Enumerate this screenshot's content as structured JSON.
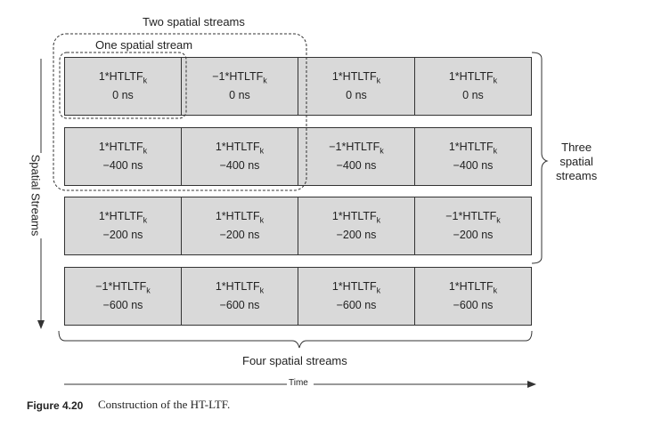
{
  "labels": {
    "two_streams": "Two spatial streams",
    "one_stream": "One spatial stream",
    "three_streams": [
      "Three",
      "spatial",
      "streams"
    ],
    "four_streams": "Four spatial streams",
    "spatial_axis": "Spatial Streams",
    "time_axis": "Time"
  },
  "rows": [
    {
      "cells": [
        {
          "sym": "1*HTLTF",
          "sub": "k",
          "shift": "0 ns"
        },
        {
          "sym": "−1*HTLTF",
          "sub": "k",
          "shift": "0 ns"
        },
        {
          "sym": "1*HTLTF",
          "sub": "k",
          "shift": "0 ns"
        },
        {
          "sym": "1*HTLTF",
          "sub": "k",
          "shift": "0 ns"
        }
      ]
    },
    {
      "cells": [
        {
          "sym": "1*HTLTF",
          "sub": "k",
          "shift": "−400 ns"
        },
        {
          "sym": "1*HTLTF",
          "sub": "k",
          "shift": "−400 ns"
        },
        {
          "sym": "−1*HTLTF",
          "sub": "k",
          "shift": "−400 ns"
        },
        {
          "sym": "1*HTLTF",
          "sub": "k",
          "shift": "−400 ns"
        }
      ]
    },
    {
      "cells": [
        {
          "sym": "1*HTLTF",
          "sub": "k",
          "shift": "−200 ns"
        },
        {
          "sym": "1*HTLTF",
          "sub": "k",
          "shift": "−200 ns"
        },
        {
          "sym": "1*HTLTF",
          "sub": "k",
          "shift": "−200 ns"
        },
        {
          "sym": "−1*HTLTF",
          "sub": "k",
          "shift": "−200 ns"
        }
      ]
    },
    {
      "cells": [
        {
          "sym": "−1*HTLTF",
          "sub": "k",
          "shift": "−600 ns"
        },
        {
          "sym": "1*HTLTF",
          "sub": "k",
          "shift": "−600 ns"
        },
        {
          "sym": "1*HTLTF",
          "sub": "k",
          "shift": "−600 ns"
        },
        {
          "sym": "1*HTLTF",
          "sub": "k",
          "shift": "−600 ns"
        }
      ]
    }
  ],
  "caption": {
    "number": "Figure 4.20",
    "text": "Construction of the HT-LTF."
  }
}
